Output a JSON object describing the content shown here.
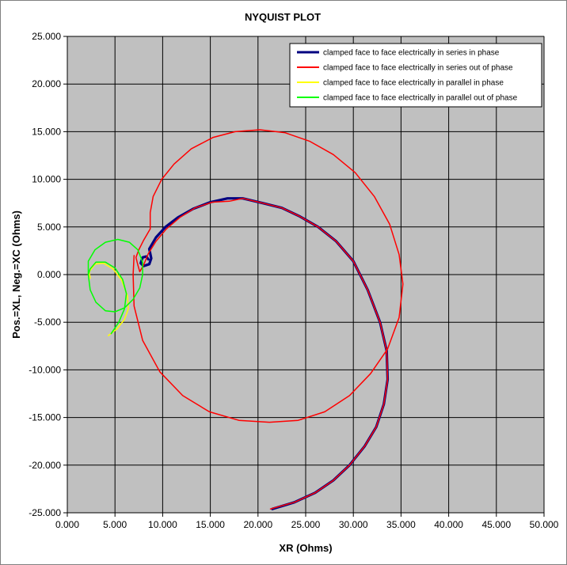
{
  "chart_data": {
    "type": "line",
    "title": "NYQUIST PLOT",
    "xlabel": "XR (Ohms)",
    "ylabel": "Pos.=XL, Neg.=XC (Ohms)",
    "xlim": [
      0,
      50
    ],
    "ylim": [
      -25,
      25
    ],
    "xticks": [
      0,
      5,
      10,
      15,
      20,
      25,
      30,
      35,
      40,
      45,
      50
    ],
    "yticks": [
      -25,
      -20,
      -15,
      -10,
      -5,
      0,
      5,
      10,
      15,
      20,
      25
    ],
    "xtick_labels": [
      "0.000",
      "5.000",
      "10.000",
      "15.000",
      "20.000",
      "25.000",
      "30.000",
      "35.000",
      "40.000",
      "45.000",
      "50.000"
    ],
    "ytick_labels": [
      "-25.000",
      "-20.000",
      "-15.000",
      "-10.000",
      "-5.000",
      "0.000",
      "5.000",
      "10.000",
      "15.000",
      "20.000",
      "25.000"
    ],
    "grid": true,
    "legend_position": "top-right",
    "plot_background": "#c0c0c0",
    "series": [
      {
        "name": "clamped face to face electrically in series in phase",
        "color": "#000080",
        "points": [
          [
            8.5,
            1.6
          ],
          [
            8.3,
            1.9
          ],
          [
            7.9,
            1.8
          ],
          [
            7.7,
            1.2
          ],
          [
            8.0,
            0.9
          ],
          [
            8.6,
            1.1
          ],
          [
            8.8,
            1.7
          ],
          [
            8.6,
            2.7
          ],
          [
            9.3,
            3.9
          ],
          [
            10.3,
            5.0
          ],
          [
            11.6,
            6.0
          ],
          [
            13.2,
            6.9
          ],
          [
            15.0,
            7.6
          ],
          [
            16.8,
            8.0
          ],
          [
            18.4,
            8.0
          ],
          [
            20.5,
            7.5
          ],
          [
            22.5,
            7.0
          ],
          [
            24.4,
            6.1
          ],
          [
            26.3,
            5.0
          ],
          [
            28.2,
            3.5
          ],
          [
            30.0,
            1.4
          ],
          [
            31.5,
            -1.6
          ],
          [
            32.8,
            -5.0
          ],
          [
            33.5,
            -8.0
          ],
          [
            33.6,
            -11.0
          ],
          [
            33.2,
            -13.6
          ],
          [
            32.4,
            -16.0
          ],
          [
            31.2,
            -18.0
          ],
          [
            29.6,
            -20.0
          ],
          [
            27.9,
            -21.6
          ],
          [
            26.0,
            -22.9
          ],
          [
            23.8,
            -23.9
          ],
          [
            21.5,
            -24.6
          ]
        ]
      },
      {
        "name": "clamped face to face electrically in series out of phase",
        "color": "#ff0000",
        "points": [
          [
            21.3,
            -24.6
          ],
          [
            23.8,
            -23.9
          ],
          [
            26.0,
            -22.9
          ],
          [
            27.9,
            -21.6
          ],
          [
            29.6,
            -20.0
          ],
          [
            31.2,
            -18.0
          ],
          [
            32.4,
            -16.0
          ],
          [
            33.2,
            -13.6
          ],
          [
            33.6,
            -11.0
          ],
          [
            33.5,
            -8.0
          ],
          [
            32.8,
            -5.0
          ],
          [
            31.5,
            -1.6
          ],
          [
            30.0,
            1.4
          ],
          [
            28.2,
            3.5
          ],
          [
            26.3,
            5.0
          ],
          [
            24.4,
            6.1
          ],
          [
            22.5,
            7.0
          ],
          [
            20.5,
            7.5
          ],
          [
            18.4,
            8.0
          ],
          [
            17.0,
            7.7
          ],
          [
            15.2,
            7.6
          ],
          [
            13.4,
            7.0
          ],
          [
            11.8,
            6.0
          ],
          [
            10.4,
            4.8
          ],
          [
            9.3,
            3.5
          ],
          [
            8.5,
            2.2
          ],
          [
            8.0,
            1.0
          ],
          [
            7.6,
            0.3
          ],
          [
            7.4,
            1.0
          ],
          [
            7.2,
            1.8
          ],
          [
            7.5,
            2.6
          ],
          [
            8.0,
            3.6
          ],
          [
            8.7,
            4.8
          ],
          [
            8.7,
            6.5
          ],
          [
            9.0,
            8.2
          ],
          [
            9.9,
            10.0
          ],
          [
            11.2,
            11.6
          ],
          [
            13.0,
            13.2
          ],
          [
            15.3,
            14.4
          ],
          [
            17.6,
            15.0
          ],
          [
            20.2,
            15.2
          ],
          [
            22.8,
            14.9
          ],
          [
            25.4,
            14.0
          ],
          [
            27.9,
            12.6
          ],
          [
            30.2,
            10.7
          ],
          [
            32.2,
            8.2
          ],
          [
            33.8,
            5.3
          ],
          [
            34.8,
            2.1
          ],
          [
            35.2,
            -1.0
          ],
          [
            34.8,
            -4.5
          ],
          [
            33.6,
            -7.8
          ],
          [
            31.8,
            -10.4
          ],
          [
            29.6,
            -12.7
          ],
          [
            27.0,
            -14.4
          ],
          [
            24.2,
            -15.3
          ],
          [
            21.2,
            -15.5
          ],
          [
            18.0,
            -15.3
          ],
          [
            14.9,
            -14.4
          ],
          [
            12.1,
            -12.7
          ],
          [
            9.7,
            -10.2
          ],
          [
            7.9,
            -6.9
          ],
          [
            7.0,
            -3.3
          ],
          [
            6.9,
            0.0
          ],
          [
            7.0,
            2.0
          ]
        ]
      },
      {
        "name": "clamped face to face electrically in parallel in phase",
        "color": "#ffff00",
        "points": [
          [
            4.3,
            -6.4
          ],
          [
            5.2,
            -5.7
          ],
          [
            6.0,
            -4.7
          ],
          [
            6.4,
            -3.6
          ],
          [
            6.3,
            -2.2
          ],
          [
            5.7,
            -0.6
          ],
          [
            4.8,
            0.6
          ],
          [
            3.8,
            1.2
          ],
          [
            2.9,
            1.1
          ],
          [
            2.3,
            0.3
          ],
          [
            2.4,
            -0.4
          ]
        ]
      },
      {
        "name": "clamped face to face electrically in parallel out of phase",
        "color": "#00ff00",
        "points": [
          [
            2.2,
            0.0
          ],
          [
            2.2,
            1.4
          ],
          [
            2.9,
            2.6
          ],
          [
            4.0,
            3.4
          ],
          [
            5.3,
            3.7
          ],
          [
            6.5,
            3.4
          ],
          [
            7.4,
            2.6
          ],
          [
            7.9,
            1.3
          ],
          [
            7.9,
            0.0
          ],
          [
            7.6,
            -1.4
          ],
          [
            6.9,
            -2.6
          ],
          [
            6.0,
            -3.5
          ],
          [
            5.0,
            -3.9
          ],
          [
            4.0,
            -3.8
          ],
          [
            3.0,
            -2.9
          ],
          [
            2.4,
            -1.6
          ],
          [
            2.2,
            0.0
          ],
          [
            2.4,
            0.6
          ],
          [
            3.0,
            1.3
          ],
          [
            4.0,
            1.3
          ],
          [
            5.0,
            0.7
          ],
          [
            5.8,
            -0.5
          ],
          [
            6.2,
            -2.0
          ],
          [
            6.0,
            -3.6
          ],
          [
            5.4,
            -5.0
          ],
          [
            4.6,
            -6.2
          ]
        ]
      }
    ]
  }
}
